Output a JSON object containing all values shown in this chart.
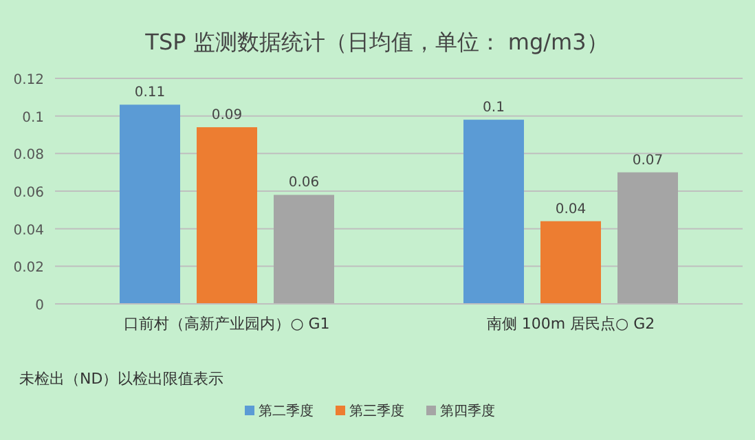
{
  "chart_data": {
    "type": "bar",
    "title": "TSP 监测数据统计（日均值，单位： mg/m3）",
    "categories": [
      "口前村（高新产业园内）○ G1",
      "南侧 100m 居民点○ G2"
    ],
    "series": [
      {
        "name": "第二季度",
        "color": "#5b9bd5",
        "values": [
          0.106,
          0.098
        ],
        "value_labels": [
          "0.11",
          "0.1"
        ]
      },
      {
        "name": "第三季度",
        "color": "#ed7d31",
        "values": [
          0.094,
          0.044
        ],
        "value_labels": [
          "0.09",
          "0.04"
        ]
      },
      {
        "name": "第四季度",
        "color": "#a5a5a5",
        "values": [
          0.058,
          0.07
        ],
        "value_labels": [
          "0.06",
          "0.07"
        ]
      }
    ],
    "ylim": [
      0,
      0.12
    ],
    "yticks": [
      0,
      0.02,
      0.04,
      0.06,
      0.08,
      0.1,
      0.12
    ],
    "grid": "y",
    "legend": "bottom",
    "annotations": [
      "未检出（ND）以检出限值表示"
    ]
  }
}
